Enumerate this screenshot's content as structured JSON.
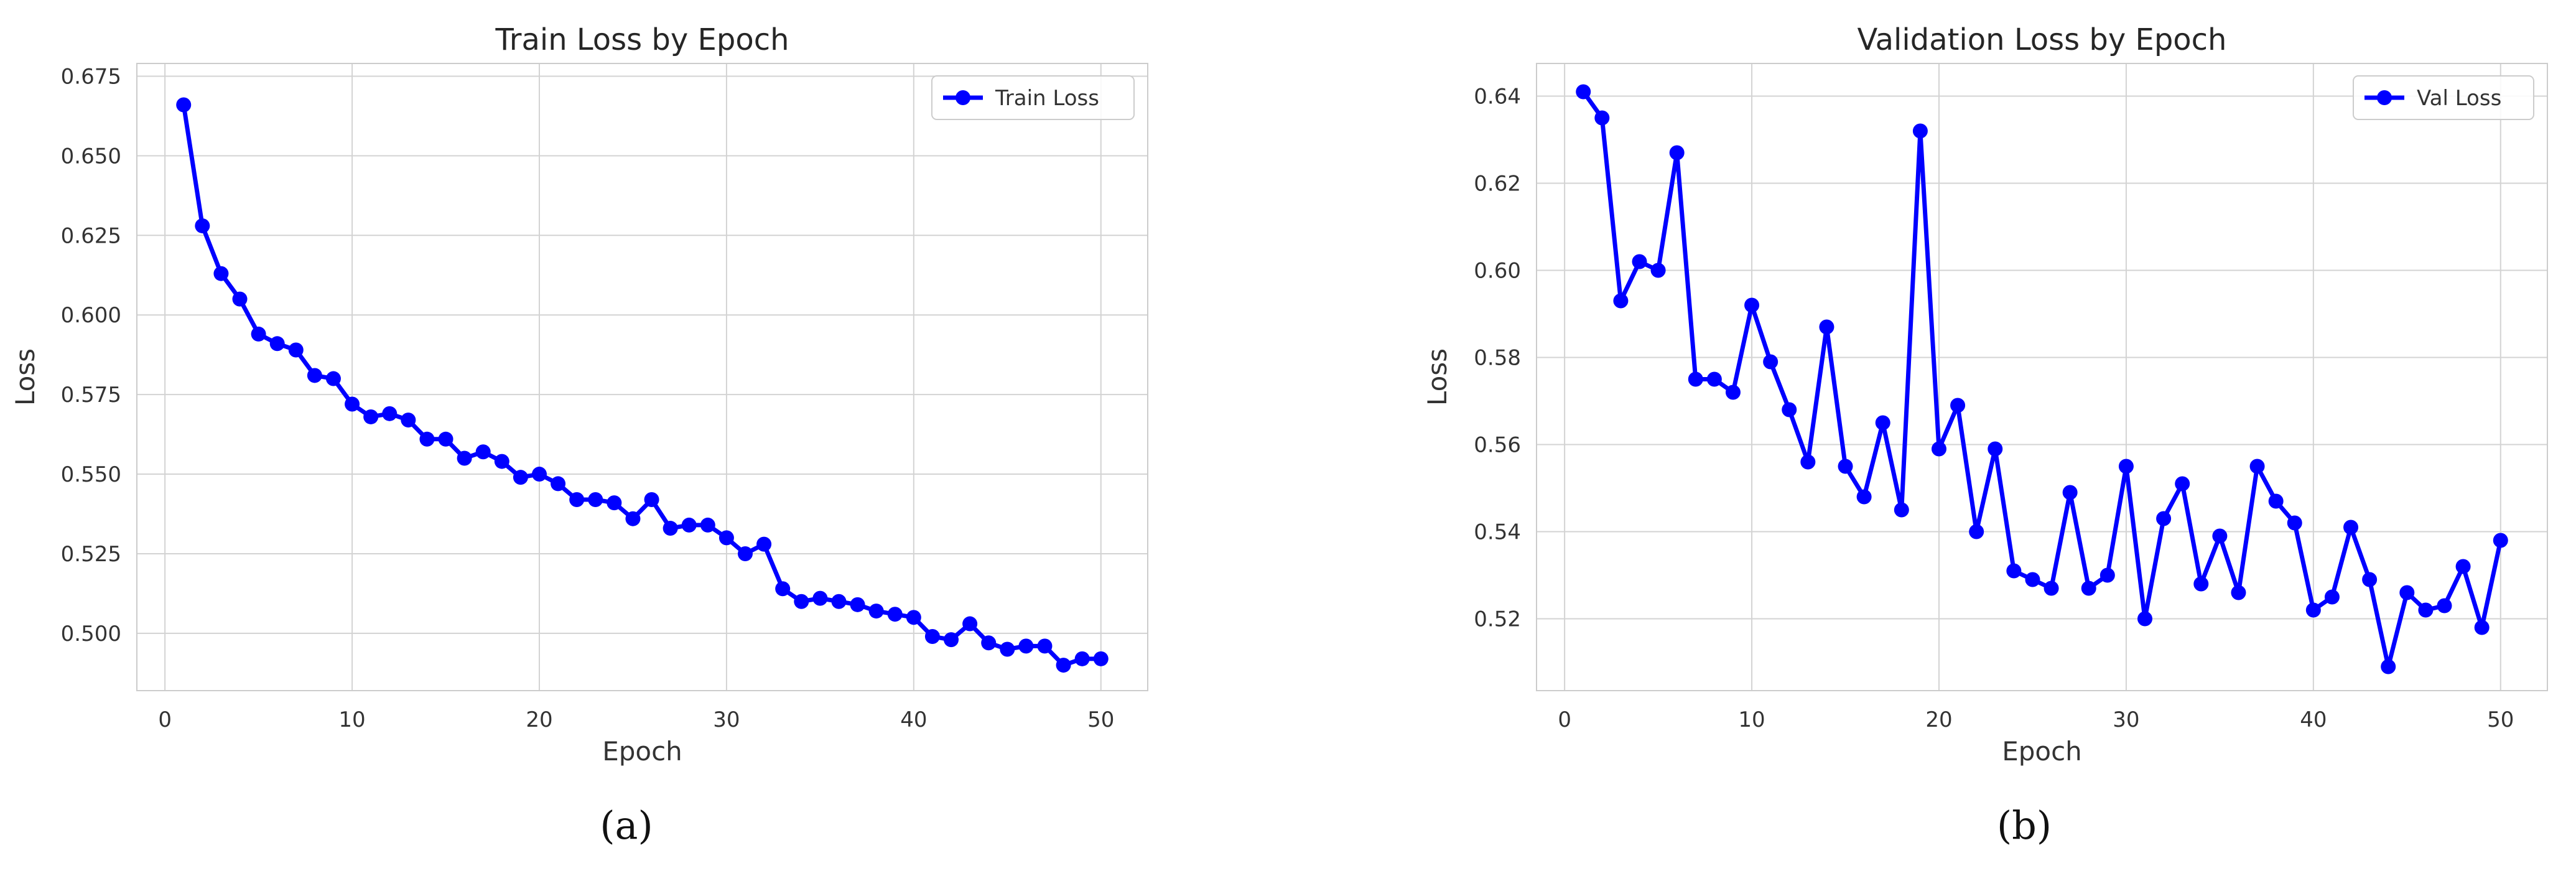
{
  "chart_data": [
    {
      "type": "line",
      "title": "Train Loss by Epoch",
      "xlabel": "Epoch",
      "ylabel": "Loss",
      "xlim": [
        -1.5,
        52.5
      ],
      "ylim": [
        0.482,
        0.679
      ],
      "xticks": [
        "0",
        "10",
        "20",
        "30",
        "40",
        "50"
      ],
      "yticks": [
        "0.500",
        "0.525",
        "0.550",
        "0.575",
        "0.600",
        "0.625",
        "0.650",
        "0.675"
      ],
      "grid": true,
      "legend_position": "top-right",
      "color": "#0000ff",
      "x": [
        1,
        2,
        3,
        4,
        5,
        6,
        7,
        8,
        9,
        10,
        11,
        12,
        13,
        14,
        15,
        16,
        17,
        18,
        19,
        20,
        21,
        22,
        23,
        24,
        25,
        26,
        27,
        28,
        29,
        30,
        31,
        32,
        33,
        34,
        35,
        36,
        37,
        38,
        39,
        40,
        41,
        42,
        43,
        44,
        45,
        46,
        47,
        48,
        49,
        50
      ],
      "series": [
        {
          "name": "Train Loss",
          "values": [
            0.666,
            0.628,
            0.613,
            0.605,
            0.594,
            0.591,
            0.589,
            0.581,
            0.58,
            0.572,
            0.568,
            0.569,
            0.567,
            0.561,
            0.561,
            0.555,
            0.557,
            0.554,
            0.549,
            0.55,
            0.547,
            0.542,
            0.542,
            0.541,
            0.536,
            0.542,
            0.533,
            0.534,
            0.534,
            0.53,
            0.525,
            0.528,
            0.514,
            0.51,
            0.511,
            0.51,
            0.509,
            0.507,
            0.506,
            0.505,
            0.499,
            0.498,
            0.503,
            0.497,
            0.495,
            0.496,
            0.496,
            0.49,
            0.492,
            0.492
          ]
        }
      ]
    },
    {
      "type": "line",
      "title": "Validation Loss by Epoch",
      "xlabel": "Epoch",
      "ylabel": "Loss",
      "xlim": [
        -1.5,
        52.5
      ],
      "ylim": [
        0.5035,
        0.6475
      ],
      "xticks": [
        "0",
        "10",
        "20",
        "30",
        "40",
        "50"
      ],
      "yticks": [
        "0.52",
        "0.54",
        "0.56",
        "0.58",
        "0.60",
        "0.62",
        "0.64"
      ],
      "grid": true,
      "legend_position": "top-right",
      "color": "#0000ff",
      "x": [
        1,
        2,
        3,
        4,
        5,
        6,
        7,
        8,
        9,
        10,
        11,
        12,
        13,
        14,
        15,
        16,
        17,
        18,
        19,
        20,
        21,
        22,
        23,
        24,
        25,
        26,
        27,
        28,
        29,
        30,
        31,
        32,
        33,
        34,
        35,
        36,
        37,
        38,
        39,
        40,
        41,
        42,
        43,
        44,
        45,
        46,
        47,
        48,
        49,
        50
      ],
      "series": [
        {
          "name": "Val Loss",
          "values": [
            0.641,
            0.635,
            0.593,
            0.602,
            0.6,
            0.627,
            0.575,
            0.575,
            0.572,
            0.592,
            0.579,
            0.568,
            0.556,
            0.587,
            0.555,
            0.548,
            0.565,
            0.545,
            0.632,
            0.559,
            0.569,
            0.54,
            0.559,
            0.531,
            0.529,
            0.527,
            0.549,
            0.527,
            0.53,
            0.555,
            0.52,
            0.543,
            0.551,
            0.528,
            0.539,
            0.526,
            0.555,
            0.547,
            0.542,
            0.522,
            0.525,
            0.541,
            0.529,
            0.509,
            0.526,
            0.522,
            0.523,
            0.532,
            0.518,
            0.538
          ]
        }
      ]
    }
  ],
  "captions": [
    "(a)",
    "(b)"
  ]
}
